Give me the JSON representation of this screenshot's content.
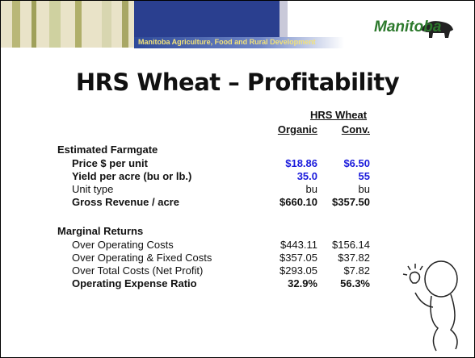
{
  "header": {
    "logo": "Manitoba",
    "department": "Manitoba Agriculture, Food and Rural Development"
  },
  "title": "HRS Wheat – Profitability",
  "table": {
    "group_header": "HRS Wheat",
    "columns": [
      "Organic",
      "Conv."
    ],
    "sections": [
      {
        "heading": "Estimated Farmgate",
        "rows": [
          {
            "label": "Price $ per unit",
            "values": [
              "$18.86",
              "$6.50"
            ],
            "bold": true,
            "color": "#1a1adc"
          },
          {
            "label": "Yield per acre (bu or lb.)",
            "values": [
              "35.0",
              "55"
            ],
            "bold": true,
            "color": "#1a1adc"
          },
          {
            "label": "Unit type",
            "values": [
              "bu",
              "bu"
            ],
            "bold": false,
            "color": "#111111"
          },
          {
            "label": "Gross Revenue / acre",
            "values": [
              "$660.10",
              "$357.50"
            ],
            "bold": true,
            "color": "#111111"
          }
        ]
      },
      {
        "heading": "Marginal Returns",
        "rows": [
          {
            "label": "Over Operating Costs",
            "values": [
              "$443.11",
              "$156.14"
            ],
            "bold": false,
            "color": "#111111"
          },
          {
            "label": "Over Operating & Fixed Costs",
            "values": [
              "$357.05",
              "$37.82"
            ],
            "bold": false,
            "color": "#111111"
          },
          {
            "label": "Over Total Costs (Net Profit)",
            "values": [
              "$293.05",
              "$7.82"
            ],
            "bold": false,
            "color": "#111111"
          },
          {
            "label": "Operating Expense Ratio",
            "values": [
              "32.9%",
              "56.3%"
            ],
            "bold": true,
            "color": "#111111"
          }
        ]
      }
    ]
  }
}
